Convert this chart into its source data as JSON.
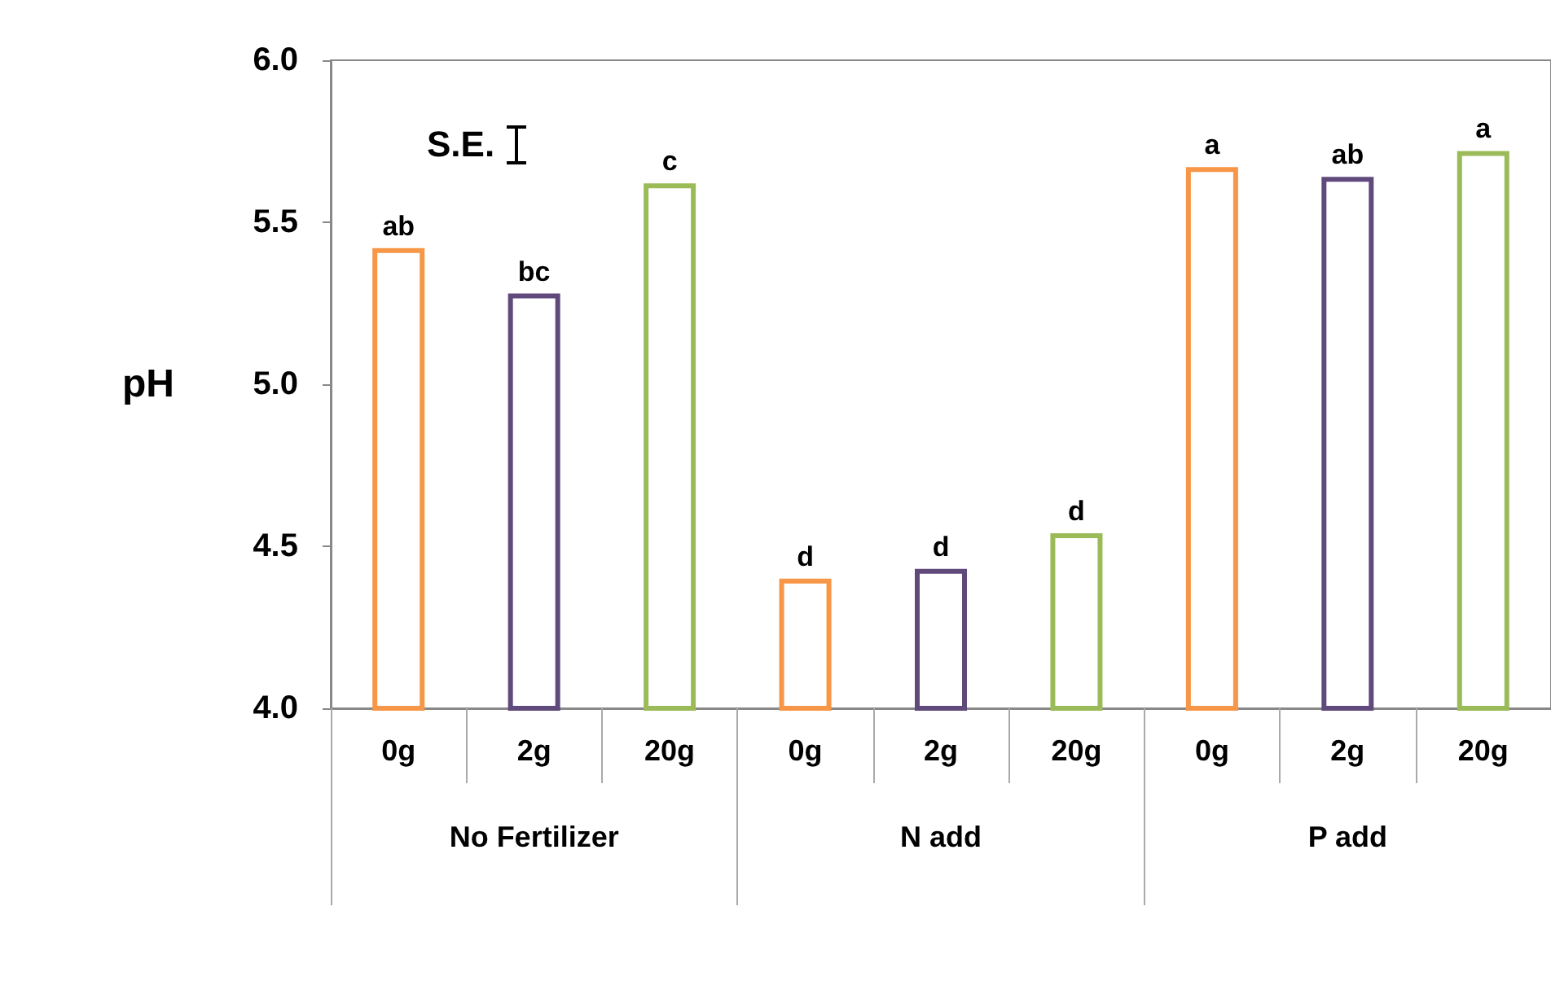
{
  "chart_data": {
    "type": "bar",
    "ylabel": "pH",
    "categories": [
      "0g",
      "2g",
      "20g",
      "0g",
      "2g",
      "20g",
      "0g",
      "2g",
      "20g"
    ],
    "values": [
      5.42,
      5.28,
      5.62,
      4.4,
      4.43,
      4.54,
      5.67,
      5.64,
      5.72
    ],
    "colors": [
      "#f79646",
      "#604a7b",
      "#9bbb59",
      "#f79646",
      "#604a7b",
      "#9bbb59",
      "#f79646",
      "#604a7b",
      "#9bbb59"
    ],
    "value_labels": [
      "ab",
      "bc",
      "c",
      "d",
      "d",
      "d",
      "a",
      "ab",
      "a"
    ],
    "ylim": [
      4.0,
      6.0
    ],
    "yticks": [
      {
        "value": 4,
        "label": "4.0"
      },
      {
        "value": 4.5,
        "label": "4.5"
      },
      {
        "value": 5,
        "label": "5.0"
      },
      {
        "value": 5.5,
        "label": "5.5"
      },
      {
        "value": 6,
        "label": "6.0"
      }
    ],
    "annotations": [
      "S.E.",
      "No Fertilizer",
      "N add",
      "P add"
    ],
    "grid": false
  }
}
